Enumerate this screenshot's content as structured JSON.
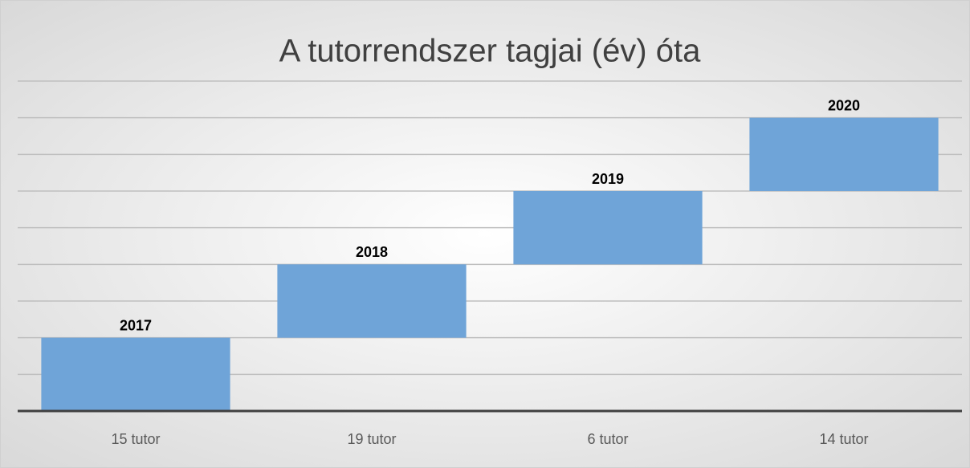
{
  "chart_data": {
    "type": "floating_bar",
    "title": "A tutorrendszer tagjai (év) óta",
    "categories": [
      "15 tutor",
      "19 tutor",
      "6 tutor",
      "14 tutor"
    ],
    "series": [
      {
        "color": "none",
        "values": [
          0,
          2,
          4,
          6
        ]
      },
      {
        "color": "#6fa4d8",
        "values": [
          2,
          2,
          2,
          2
        ]
      }
    ],
    "labels": [
      "2017",
      "2018",
      "2019",
      "2020"
    ],
    "ylim": [
      0,
      9
    ],
    "grid_lines": [
      1,
      2,
      3,
      4,
      5,
      6,
      7,
      8,
      9
    ],
    "grid": true
  }
}
